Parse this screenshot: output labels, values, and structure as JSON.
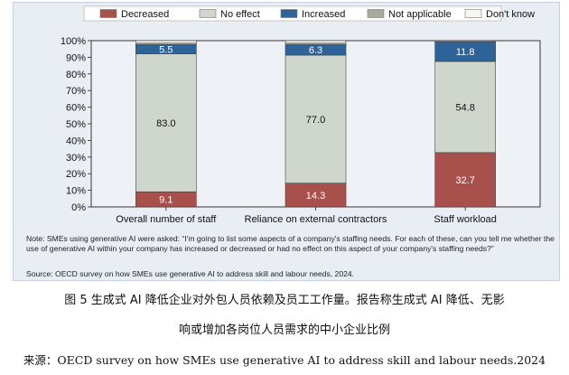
{
  "chart_data": {
    "type": "bar",
    "stacked": true,
    "percent": true,
    "categories": [
      "Overall number of staff",
      "Reliance on external contractors",
      "Staff workload"
    ],
    "series": [
      {
        "name": "Decreased",
        "color": "#a8504b",
        "values": [
          9.1,
          14.3,
          32.7
        ],
        "labels": [
          "9.1",
          "14.3",
          "32.7"
        ]
      },
      {
        "name": "No effect",
        "color": "#cfd7cc",
        "values": [
          83.0,
          77.0,
          54.8
        ],
        "labels": [
          "83.0",
          "77.0",
          "54.8"
        ]
      },
      {
        "name": "Increased",
        "color": "#2e6399",
        "values": [
          5.5,
          6.3,
          11.8
        ],
        "labels": [
          "5.5",
          "6.3",
          "11.8"
        ]
      },
      {
        "name": "Not applicable",
        "color": "#a9aa9d",
        "values": [
          0.9,
          0.9,
          0.2
        ],
        "labels": [
          "",
          "",
          ""
        ]
      },
      {
        "name": "Don't know",
        "color": "#f7f7f2",
        "values": [
          1.5,
          1.5,
          0.5
        ],
        "labels": [
          "",
          "",
          ""
        ]
      }
    ],
    "ylim": [
      0,
      100
    ],
    "yticks": [
      "0%",
      "10%",
      "20%",
      "30%",
      "40%",
      "50%",
      "60%",
      "70%",
      "80%",
      "90%",
      "100%"
    ],
    "legend_position": "top",
    "grid": false
  },
  "note": "Note: SMEs using generative AI were asked: “I'm going to list some aspects of a company's staffing needs. For each of these, can you tell me whether the use of generative AI within your company has increased or decreased or had no effect on this aspect of your company's staffing needs?”",
  "source": "Source: OECD survey on how SMEs use generative AI to address skill and labour needs, 2024.",
  "caption": {
    "line1": "图 5 生成式 AI 降低企业对外包人员依赖及员工工作量。报告称生成式 AI 降低、无影",
    "line2": "响或增加各岗位人员需求的中小企业比例",
    "source_line": "来源：OECD survey on how SMEs use generative AI to address skill and labour needs.2024"
  }
}
